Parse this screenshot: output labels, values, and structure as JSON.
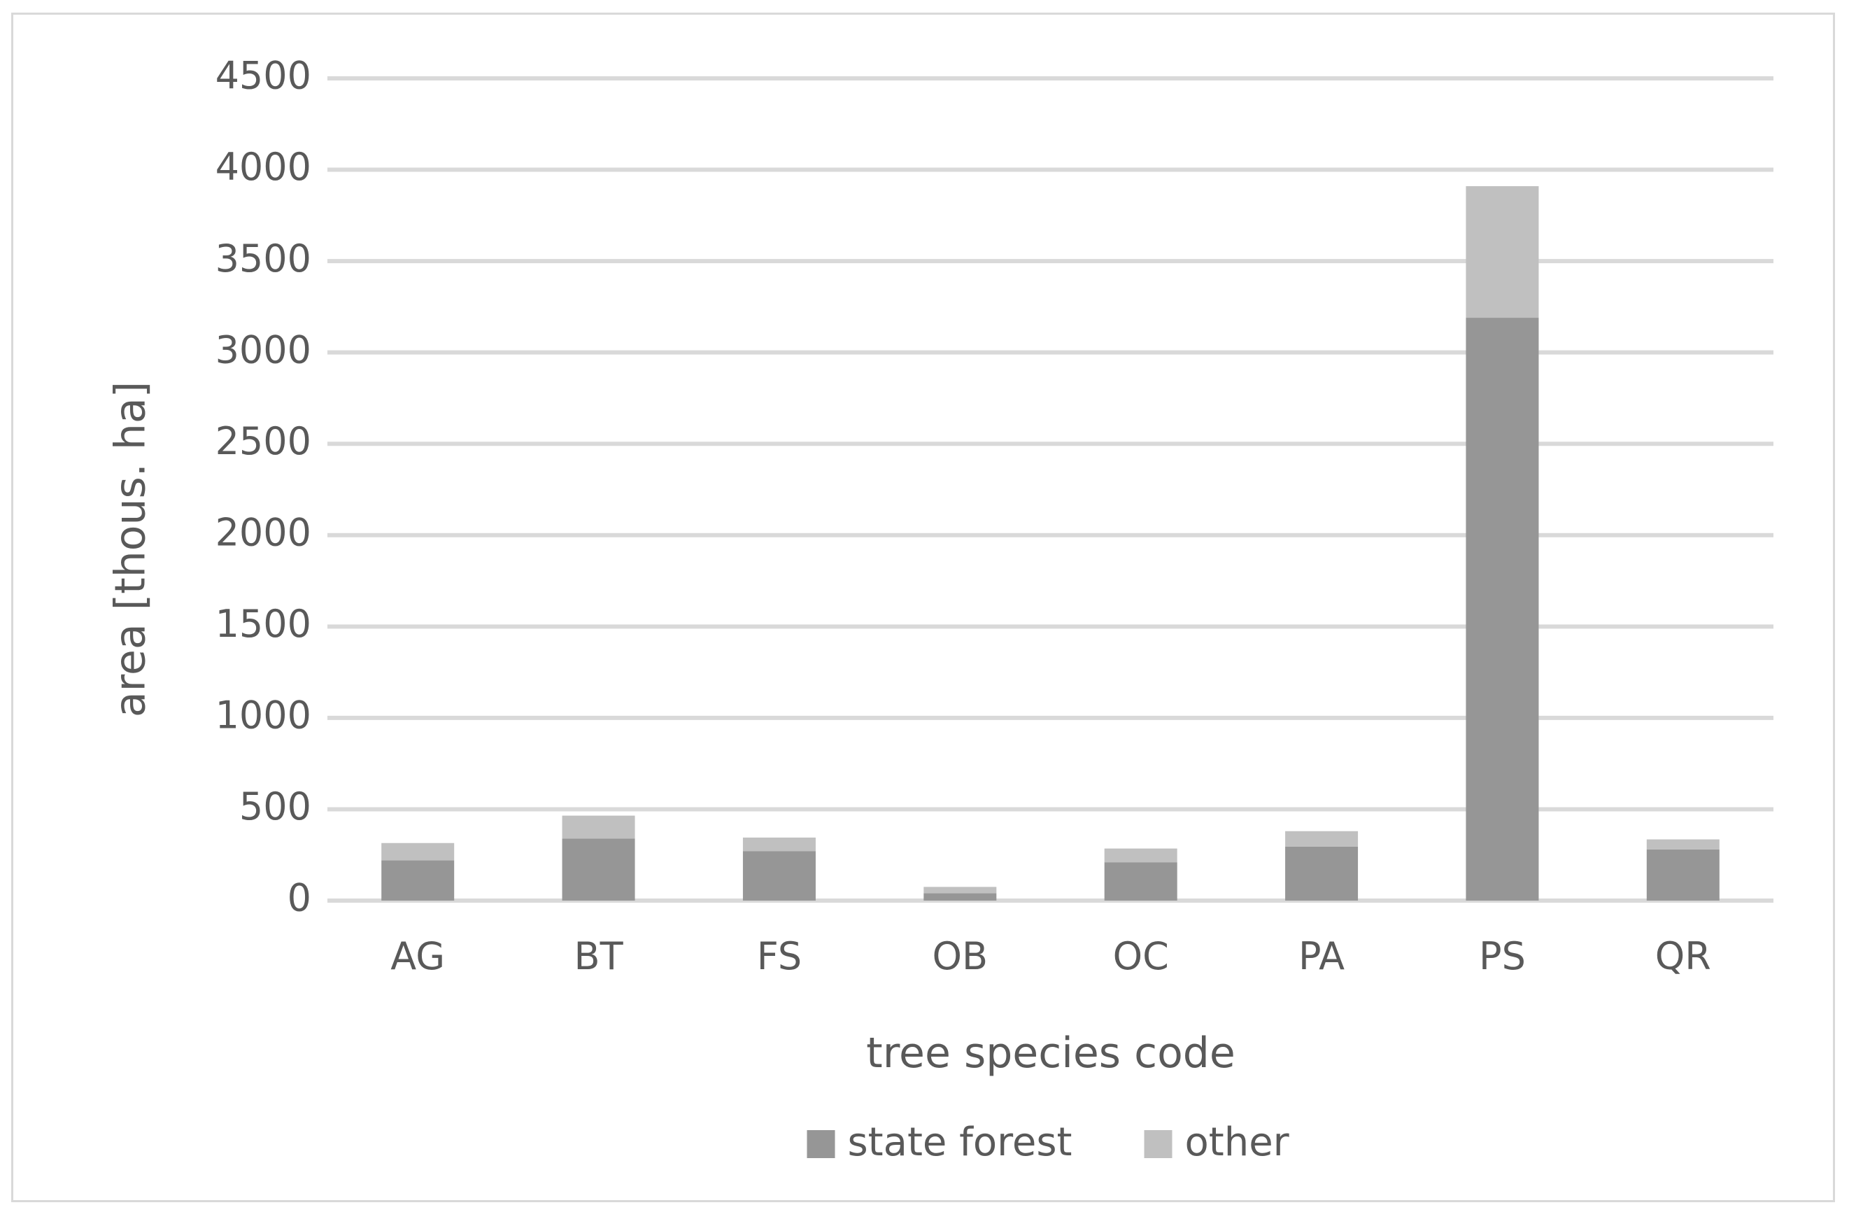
{
  "chart_data": {
    "type": "bar",
    "stacked": true,
    "title": "",
    "xlabel": "tree species code",
    "ylabel": "area [thous. ha]",
    "categories": [
      "AG",
      "BT",
      "FS",
      "OB",
      "OC",
      "PA",
      "PS",
      "QR"
    ],
    "series": [
      {
        "name": "state forest",
        "color": "#969696",
        "values": [
          220,
          340,
          270,
          40,
          210,
          295,
          3190,
          280
        ]
      },
      {
        "name": "other",
        "color": "#c0c0c0",
        "values": [
          95,
          125,
          75,
          35,
          75,
          85,
          720,
          55
        ]
      }
    ],
    "ylim": [
      0,
      4500
    ],
    "yticks": [
      0,
      500,
      1000,
      1500,
      2000,
      2500,
      3000,
      3500,
      4000,
      4500
    ],
    "grid": true,
    "legend_position": "bottom"
  }
}
